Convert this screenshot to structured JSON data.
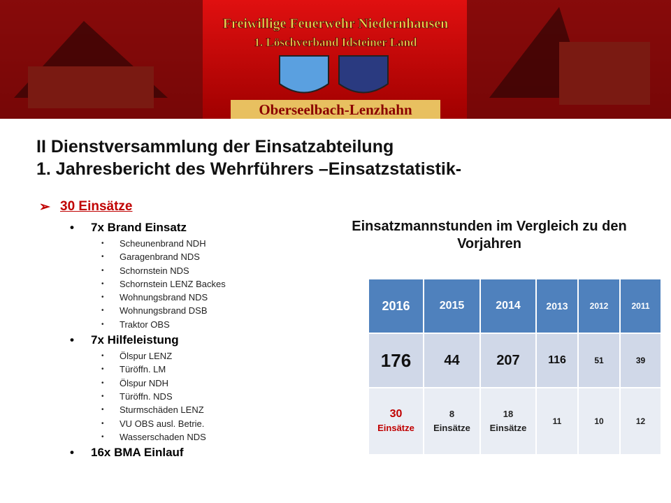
{
  "banner": {
    "line1": "Freiwillige Feuerwehr Niedernhausen",
    "line2": "1. Löschverband Idsteiner Land",
    "place": "Oberseelbach-Lenzhahn"
  },
  "title": [
    "II Dienstversammlung der Einsatzabteilung",
    "1. Jahresbericht des Wehrführers –Einsatzstatistik-"
  ],
  "list": {
    "heading": "30 Einsätze",
    "groups": [
      {
        "label": "7x Brand Einsatz",
        "items": [
          "Scheunenbrand NDH",
          "Garagenbrand NDS",
          "Schornstein NDS",
          "Schornstein LENZ Backes",
          "Wohnungsbrand NDS",
          "Wohnungsbrand DSB",
          "Traktor OBS"
        ]
      },
      {
        "label": "7x Hilfeleistung",
        "items": [
          "Ölspur LENZ",
          "Türöffn. LM",
          "Ölspur NDH",
          "Türöffn. NDS",
          "Sturmschäden LENZ",
          "VU OBS ausl. Betrie.",
          "Wasserschaden NDS"
        ]
      },
      {
        "label": "16x BMA Einlauf",
        "items": []
      }
    ]
  },
  "table": {
    "caption": "Einsatzmannstunden im Vergleich zu den Vorjahren",
    "header": [
      "2016",
      "2015",
      "2014",
      "2013",
      "2012",
      "2011"
    ],
    "rows": [
      [
        "176",
        "44",
        "207",
        "116",
        "51",
        "39"
      ],
      [
        [
          "30",
          "Einsätze"
        ],
        [
          "8",
          "Einsätze"
        ],
        [
          "18",
          "Einsätze"
        ],
        [
          "11"
        ],
        [
          "10"
        ],
        [
          "12"
        ]
      ]
    ]
  }
}
